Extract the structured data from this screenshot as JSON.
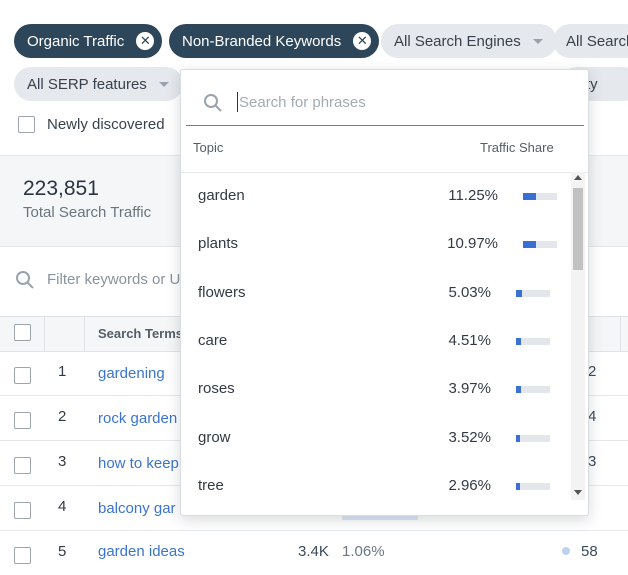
{
  "filters": {
    "organic_traffic": "Organic Traffic",
    "non_branded_keywords": "Non-Branded Keywords",
    "search_engines": "All Search Engines",
    "cut_chip": "All Search",
    "serp_features": "All SERP features",
    "hidden_chip_tail": "ty",
    "newly_discovered": "Newly discovered"
  },
  "summary": {
    "total_value": "223,851",
    "total_label": "Total Search Traffic"
  },
  "keyword_filter": {
    "placeholder": "Filter keywords or U"
  },
  "table": {
    "header_search_terms": "Search Terms",
    "rows": [
      {
        "num": "1",
        "term": "gardening",
        "value": "2"
      },
      {
        "num": "2",
        "term": "rock garden",
        "value": "4"
      },
      {
        "num": "3",
        "term": "how to keep",
        "value": "3"
      },
      {
        "num": "4",
        "term": "balcony gar",
        "value": ""
      },
      {
        "num": "5",
        "term": "garden ideas",
        "mid_a": "3.4K",
        "mid_b": "1.06%",
        "value": "58"
      }
    ]
  },
  "dropdown": {
    "search_placeholder": "Search for phrases",
    "col_topic": "Topic",
    "col_share": "Traffic Share",
    "topics": [
      {
        "label": "garden",
        "share": "11.25%",
        "fraction": 0.1125
      },
      {
        "label": "plants",
        "share": "10.97%",
        "fraction": 0.1097
      },
      {
        "label": "flowers",
        "share": "5.03%",
        "fraction": 0.0503
      },
      {
        "label": "care",
        "share": "4.51%",
        "fraction": 0.0451
      },
      {
        "label": "roses",
        "share": "3.97%",
        "fraction": 0.0397
      },
      {
        "label": "grow",
        "share": "3.52%",
        "fraction": 0.0352
      },
      {
        "label": "tree",
        "share": "2.96%",
        "fraction": 0.0296
      }
    ]
  },
  "colors": {
    "chip_dark": "#2e4659",
    "chip_light": "#e5e8ec",
    "link": "#3b74cf",
    "bar": "#3b6fd4"
  },
  "icons": [
    "close-icon",
    "chevron-down-icon",
    "search-icon",
    "scroll-up-icon",
    "scroll-down-icon"
  ]
}
